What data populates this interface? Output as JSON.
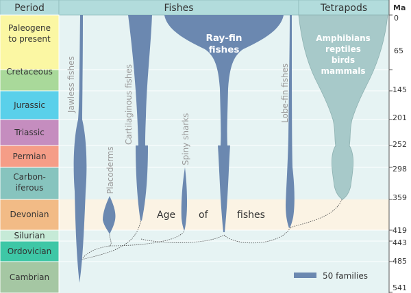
{
  "header": {
    "period_label": "Period",
    "fishes_label": "Fishes",
    "tetrapods_label": "Tetrapods",
    "ma_label": "Ma"
  },
  "periods": [
    {
      "name": "Paleogene",
      "name2": "to present",
      "color": "#fbf7a3"
    },
    {
      "name": "Cretaceous",
      "color": "#a9d99a"
    },
    {
      "name": "Jurassic",
      "color": "#5ad0ea"
    },
    {
      "name": "Triassic",
      "color": "#c58dbf"
    },
    {
      "name": "Permian",
      "color": "#f59d87"
    },
    {
      "name": "Carbon-",
      "name2": "iferous",
      "color": "#87c4be"
    },
    {
      "name": "Devonian",
      "color": "#f2bb86"
    },
    {
      "name": "Silurian",
      "color": "#c6ead7"
    },
    {
      "name": "Ordovician",
      "color": "#3ec7a6"
    },
    {
      "name": "Cambrian",
      "color": "#a5c7a3"
    }
  ],
  "ma_ticks": [
    "0",
    "65",
    "145",
    "201",
    "252",
    "298",
    "359",
    "419",
    "443",
    "485",
    "541"
  ],
  "groups": {
    "jawless": "Jawless fishes",
    "placoderms": "Placoderms",
    "cartilaginous": "Cartilaginous fishes",
    "spiny": "Spiny sharks",
    "rayfin_1": "Ray-fin",
    "rayfin_2": "fishes",
    "lobefin": "Lobe-fin fishes",
    "tetra_1": "Amphibians",
    "tetra_2": "reptiles",
    "tetra_3": "birds",
    "tetra_4": "mammals"
  },
  "age_of_fishes": {
    "w1": "Age",
    "w2": "of",
    "w3": "fishes"
  },
  "legend": {
    "label": "50 families"
  },
  "colors": {
    "fish": "#6b88b0",
    "tetrapod": "#a7c9c9",
    "background": "#e6f3f3",
    "devonian_band": "#fbf3e4",
    "header": "#b2dcdc"
  }
}
